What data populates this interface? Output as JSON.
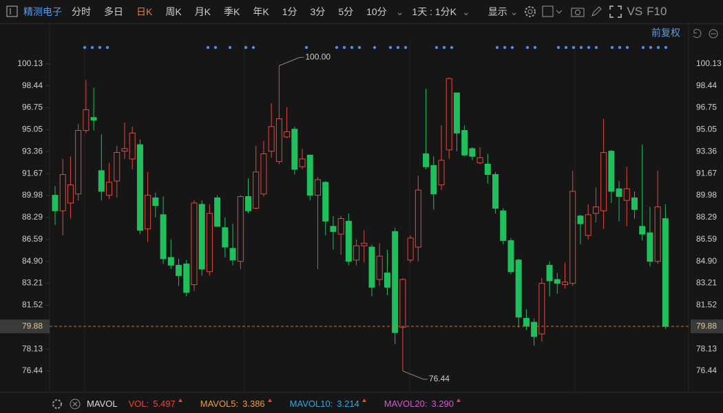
{
  "header": {
    "stock_name": "精测电子",
    "tabs": [
      "分时",
      "多日",
      "日K",
      "周K",
      "月K",
      "季K",
      "年K",
      "1分",
      "3分",
      "5分",
      "10分"
    ],
    "active_tab": "日K",
    "period_select": "1天 : 1分K",
    "display": "显示",
    "vs": "VS",
    "f10": "F10",
    "adjust": "前复权"
  },
  "chart_data": {
    "type": "candlestick",
    "open": [
      90.0,
      88.8,
      89.4,
      90.1,
      95.0,
      96.0,
      91.9,
      90.0,
      91.1,
      93.4,
      92.8,
      93.9,
      87.4,
      89.8,
      88.5,
      85.2,
      84.6,
      84.7,
      83.1,
      89.3,
      84.1,
      89.8,
      87.5,
      85.9,
      84.9,
      89.9,
      89.0,
      90.1,
      93.4,
      92.6,
      94.5,
      95.1,
      92.2,
      93.1,
      90.0,
      91.0,
      87.6,
      87.0,
      88.0,
      85.0,
      86.1,
      86.0,
      83.5,
      84.0,
      87.2,
      79.8,
      85.0,
      86.0,
      93.2,
      92.3,
      90.8,
      93.5,
      97.9,
      95.0,
      93.6,
      92.5,
      92.4,
      91.6,
      88.8,
      86.5,
      85.0,
      80.5,
      80.2,
      79.3,
      84.6,
      83.5,
      83.1,
      83.2,
      88.4,
      86.9,
      88.6,
      88.8,
      93.4,
      90.5,
      89.6,
      89.8,
      87.6,
      87.1,
      84.9,
      88.2
    ],
    "high": [
      90.7,
      92.8,
      93.0,
      95.5,
      98.9,
      98.3,
      94.7,
      92.5,
      93.8,
      95.6,
      95.3,
      94.3,
      91.8,
      90.2,
      89.9,
      86.6,
      85.1,
      85.0,
      89.6,
      89.6,
      89.3,
      90.0,
      88.3,
      87.8,
      90.0,
      91.3,
      93.8,
      94.2,
      97.1,
      100.0,
      96.8,
      95.3,
      93.6,
      93.1,
      91.4,
      91.1,
      88.4,
      88.4,
      88.6,
      86.6,
      87.3,
      86.2,
      86.3,
      85.8,
      87.5,
      83.6,
      86.9,
      91.5,
      98.2,
      93.0,
      95.4,
      99.1,
      97.9,
      95.4,
      93.7,
      93.7,
      93.2,
      91.8,
      89.0,
      86.7,
      85.1,
      81.2,
      80.5,
      83.6,
      84.9,
      84.0,
      84.8,
      91.9,
      88.5,
      89.3,
      90.6,
      95.9,
      93.5,
      91.1,
      92.2,
      90.3,
      93.9,
      89.1,
      91.9,
      89.3
    ],
    "low": [
      87.7,
      86.9,
      88.2,
      89.6,
      94.8,
      95.0,
      89.6,
      89.7,
      89.8,
      92.8,
      92.0,
      87.0,
      86.4,
      88.3,
      84.7,
      84.3,
      83.0,
      82.2,
      82.6,
      83.8,
      83.8,
      87.6,
      85.2,
      84.6,
      84.3,
      88.6,
      88.9,
      89.9,
      92.9,
      92.4,
      94.4,
      91.6,
      92.0,
      89.6,
      84.3,
      86.9,
      85.8,
      85.4,
      84.6,
      84.6,
      84.8,
      82.2,
      83.0,
      82.3,
      78.5,
      76.44,
      84.8,
      84.9,
      92.0,
      88.9,
      90.4,
      92.8,
      93.4,
      93.0,
      92.7,
      92.4,
      90.9,
      88.6,
      86.2,
      83.9,
      79.8,
      79.6,
      78.4,
      78.7,
      82.2,
      82.4,
      82.8,
      83.0,
      86.2,
      86.6,
      87.9,
      87.4,
      89.4,
      88.0,
      87.6,
      88.2,
      86.5,
      84.5,
      84.7,
      79.7
    ],
    "close": [
      88.8,
      91.6,
      90.8,
      95.0,
      96.6,
      95.8,
      90.3,
      91.0,
      93.3,
      93.6,
      94.8,
      87.3,
      90.0,
      89.2,
      85.1,
      84.6,
      83.8,
      82.5,
      89.4,
      84.3,
      88.6,
      87.6,
      86.0,
      85.0,
      89.9,
      88.8,
      91.8,
      93.2,
      95.3,
      95.9,
      94.9,
      92.0,
      92.8,
      90.0,
      91.2,
      88.0,
      87.2,
      88.2,
      84.9,
      86.1,
      86.3,
      82.9,
      85.3,
      82.9,
      79.4,
      83.5,
      86.7,
      90.4,
      92.2,
      90.1,
      92.7,
      99.0,
      94.8,
      93.1,
      93.0,
      92.9,
      91.6,
      89.0,
      86.5,
      84.1,
      80.6,
      79.9,
      79.1,
      83.2,
      83.4,
      83.2,
      83.3,
      90.3,
      87.8,
      88.5,
      89.1,
      93.3,
      90.3,
      89.9,
      90.5,
      88.9,
      87.0,
      84.9,
      89.1,
      79.88
    ],
    "up_color": "#e5483c",
    "down_color": "#1fbf5c",
    "ylim": [
      74.95,
      101.72
    ],
    "yticks": [
      100.13,
      98.44,
      96.75,
      95.05,
      93.36,
      91.67,
      89.98,
      88.29,
      86.59,
      {
        "value": 84.9,
        "label": "84.90"
      },
      83.21,
      81.52,
      78.13,
      76.44
    ],
    "current_price": 79.88,
    "annotations": [
      {
        "text": "100.00",
        "value": 100.0,
        "at": "high"
      },
      {
        "text": "76.44",
        "value": 76.44,
        "at": "low"
      }
    ],
    "indicators": [
      {
        "name": "MAVOL",
        "value": null,
        "color": "#dcdcdc"
      },
      {
        "name": "VOL:",
        "value": "5.497",
        "color": "#e5483c"
      },
      {
        "name": "MAVOL5:",
        "value": "3.386",
        "color": "#e8a040"
      },
      {
        "name": "MAVOL10:",
        "value": "3.214",
        "color": "#3aa6e0"
      },
      {
        "name": "MAVOL20:",
        "value": "3.290",
        "color": "#d35bd0"
      }
    ]
  }
}
